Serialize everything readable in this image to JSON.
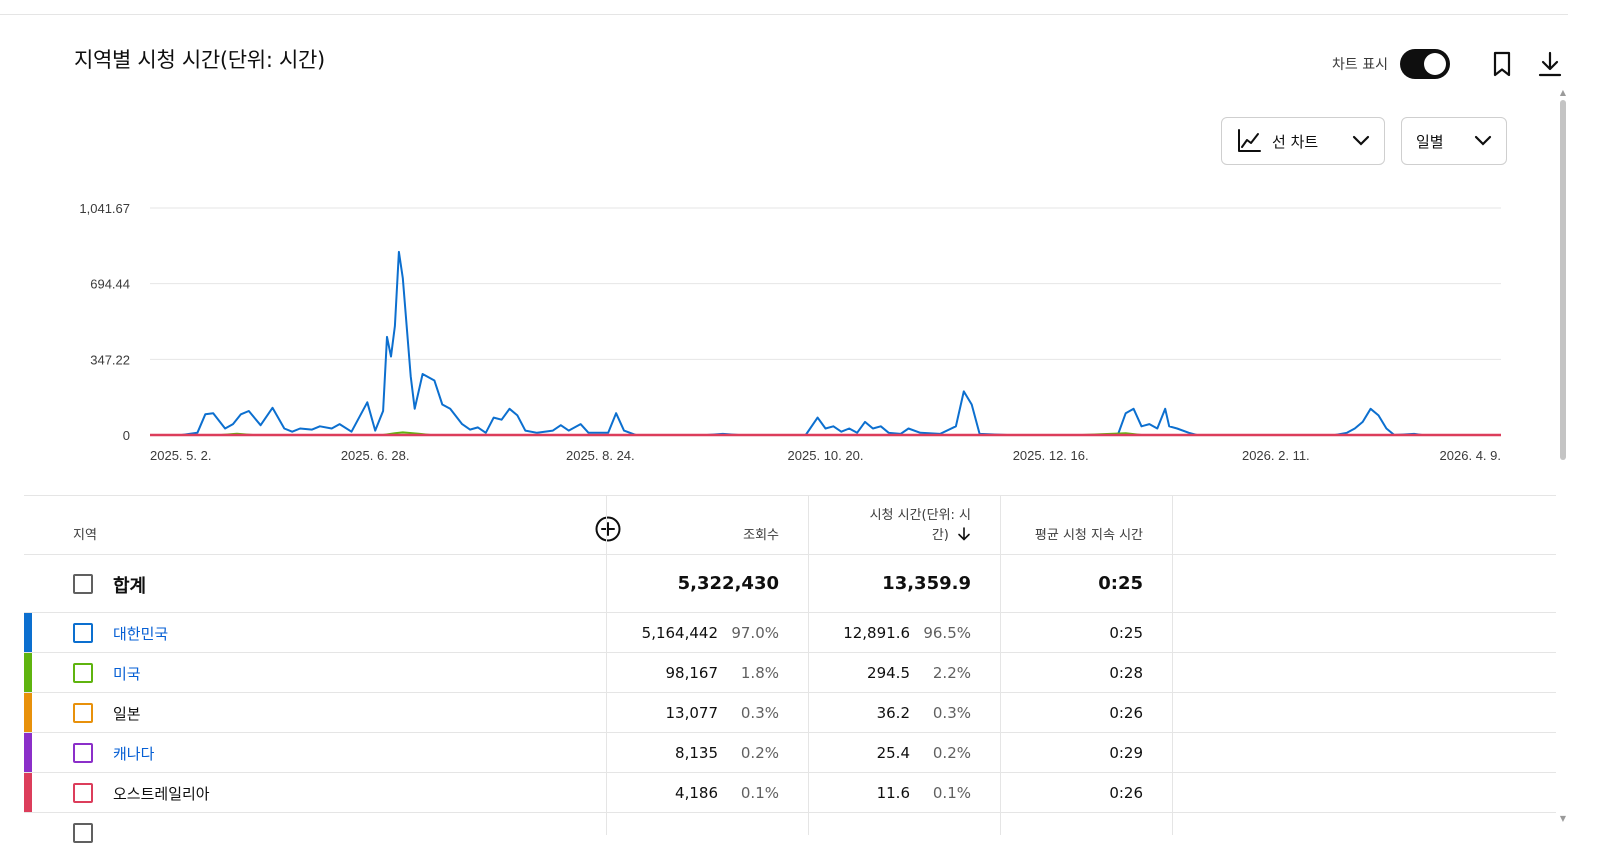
{
  "title": "지역별 시청 시간(단위: 시간)",
  "toolbar": {
    "toggle_label": "차트 표시",
    "chart_type_label": "선 차트",
    "period_label": "일별"
  },
  "colors": {
    "korea": "#0c6fcf",
    "usa": "#5fb40f",
    "japan": "#e8910b",
    "canada": "#8b2fc9",
    "australia": "#dc3d5b"
  },
  "chart_data": {
    "type": "line",
    "title": "지역별 시청 시간(단위: 시간)",
    "xlabel": "",
    "ylabel": "",
    "ylim": [
      0,
      1041.67
    ],
    "y_ticks": [
      "1,041.67",
      "694.44",
      "347.22",
      "0"
    ],
    "y_tick_values": [
      1041.67,
      694.44,
      347.22,
      0
    ],
    "x_tick_labels": [
      "2025. 5. 2.",
      "2025. 6. 28.",
      "2025. 8. 24.",
      "2025. 10. 20.",
      "2025. 12. 16.",
      "2026. 2. 11.",
      "2026. 4. 9."
    ],
    "x_start": "2025-05-02",
    "x_end": "2026-04-09",
    "grid": true,
    "series": [
      {
        "name": "대한민국",
        "color": "#0c6fcf",
        "points": [
          [
            "2025-05-02",
            0
          ],
          [
            "2025-05-10",
            0
          ],
          [
            "2025-05-14",
            10
          ],
          [
            "2025-05-16",
            95
          ],
          [
            "2025-05-18",
            100
          ],
          [
            "2025-05-21",
            30
          ],
          [
            "2025-05-23",
            50
          ],
          [
            "2025-05-25",
            95
          ],
          [
            "2025-05-27",
            110
          ],
          [
            "2025-05-30",
            45
          ],
          [
            "2025-06-02",
            125
          ],
          [
            "2025-06-05",
            30
          ],
          [
            "2025-06-07",
            15
          ],
          [
            "2025-06-09",
            30
          ],
          [
            "2025-06-12",
            25
          ],
          [
            "2025-06-14",
            40
          ],
          [
            "2025-06-17",
            30
          ],
          [
            "2025-06-19",
            50
          ],
          [
            "2025-06-22",
            15
          ],
          [
            "2025-06-26",
            150
          ],
          [
            "2025-06-28",
            20
          ],
          [
            "2025-06-30",
            110
          ],
          [
            "2025-07-01",
            450
          ],
          [
            "2025-07-02",
            360
          ],
          [
            "2025-07-03",
            500
          ],
          [
            "2025-07-04",
            840
          ],
          [
            "2025-07-05",
            720
          ],
          [
            "2025-07-07",
            270
          ],
          [
            "2025-07-08",
            120
          ],
          [
            "2025-07-10",
            280
          ],
          [
            "2025-07-13",
            250
          ],
          [
            "2025-07-15",
            140
          ],
          [
            "2025-07-17",
            120
          ],
          [
            "2025-07-20",
            50
          ],
          [
            "2025-07-22",
            25
          ],
          [
            "2025-07-24",
            35
          ],
          [
            "2025-07-26",
            10
          ],
          [
            "2025-07-28",
            80
          ],
          [
            "2025-07-30",
            70
          ],
          [
            "2025-08-01",
            120
          ],
          [
            "2025-08-03",
            90
          ],
          [
            "2025-08-05",
            20
          ],
          [
            "2025-08-08",
            10
          ],
          [
            "2025-08-12",
            20
          ],
          [
            "2025-08-14",
            45
          ],
          [
            "2025-08-16",
            20
          ],
          [
            "2025-08-19",
            50
          ],
          [
            "2025-08-21",
            10
          ],
          [
            "2025-08-26",
            10
          ],
          [
            "2025-08-28",
            100
          ],
          [
            "2025-08-30",
            20
          ],
          [
            "2025-09-02",
            0
          ],
          [
            "2025-09-20",
            0
          ],
          [
            "2025-09-24",
            5
          ],
          [
            "2025-09-28",
            0
          ],
          [
            "2025-10-15",
            0
          ],
          [
            "2025-10-18",
            80
          ],
          [
            "2025-10-20",
            30
          ],
          [
            "2025-10-22",
            40
          ],
          [
            "2025-10-24",
            15
          ],
          [
            "2025-10-26",
            30
          ],
          [
            "2025-10-28",
            10
          ],
          [
            "2025-10-30",
            60
          ],
          [
            "2025-11-01",
            30
          ],
          [
            "2025-11-03",
            40
          ],
          [
            "2025-11-05",
            10
          ],
          [
            "2025-11-08",
            5
          ],
          [
            "2025-11-10",
            30
          ],
          [
            "2025-11-13",
            10
          ],
          [
            "2025-11-18",
            5
          ],
          [
            "2025-11-22",
            40
          ],
          [
            "2025-11-24",
            200
          ],
          [
            "2025-11-26",
            140
          ],
          [
            "2025-11-28",
            5
          ],
          [
            "2025-12-05",
            0
          ],
          [
            "2025-12-28",
            0
          ],
          [
            "2026-01-02",
            0
          ],
          [
            "2026-01-04",
            100
          ],
          [
            "2026-01-06",
            120
          ],
          [
            "2026-01-08",
            40
          ],
          [
            "2026-01-10",
            50
          ],
          [
            "2026-01-12",
            30
          ],
          [
            "2026-01-14",
            120
          ],
          [
            "2026-01-15",
            40
          ],
          [
            "2026-01-17",
            30
          ],
          [
            "2026-01-20",
            10
          ],
          [
            "2026-01-22",
            0
          ],
          [
            "2026-02-20",
            0
          ],
          [
            "2026-02-26",
            0
          ],
          [
            "2026-03-01",
            10
          ],
          [
            "2026-03-03",
            30
          ],
          [
            "2026-03-05",
            60
          ],
          [
            "2026-03-07",
            120
          ],
          [
            "2026-03-09",
            90
          ],
          [
            "2026-03-11",
            30
          ],
          [
            "2026-03-13",
            0
          ],
          [
            "2026-03-18",
            5
          ],
          [
            "2026-03-20",
            0
          ],
          [
            "2026-04-09",
            0
          ]
        ]
      },
      {
        "name": "미국",
        "color": "#5fb40f",
        "points": [
          [
            "2025-05-02",
            0
          ],
          [
            "2025-05-20",
            0
          ],
          [
            "2025-05-24",
            6
          ],
          [
            "2025-05-28",
            0
          ],
          [
            "2025-06-30",
            0
          ],
          [
            "2025-07-03",
            8
          ],
          [
            "2025-07-05",
            12
          ],
          [
            "2025-07-09",
            6
          ],
          [
            "2025-07-12",
            0
          ],
          [
            "2025-12-24",
            0
          ],
          [
            "2026-01-04",
            8
          ],
          [
            "2026-01-08",
            0
          ],
          [
            "2026-04-09",
            0
          ]
        ]
      },
      {
        "name": "일본",
        "color": "#e8910b",
        "points": [
          [
            "2025-05-02",
            0
          ],
          [
            "2026-04-09",
            0
          ]
        ]
      },
      {
        "name": "캐나다",
        "color": "#8b2fc9",
        "points": [
          [
            "2025-05-02",
            0
          ],
          [
            "2026-04-09",
            0
          ]
        ]
      },
      {
        "name": "오스트레일리아",
        "color": "#dc3d5b",
        "points": [
          [
            "2025-05-02",
            0
          ],
          [
            "2026-04-09",
            0
          ]
        ]
      }
    ]
  },
  "table": {
    "headers": {
      "region": "지역",
      "views": "조회수",
      "watch_time": "시청 시간(단위: 시간)",
      "avg_duration": "평균 시청 지속 시간"
    },
    "total": {
      "label": "합계",
      "views": "5,322,430",
      "watch_time": "13,359.9",
      "avg_duration": "0:25"
    },
    "rows": [
      {
        "name": "대한민국",
        "link": true,
        "color": "#0c6fcf",
        "views": "5,164,442",
        "views_pct": "97.0%",
        "watch_time": "12,891.6",
        "watch_pct": "96.5%",
        "avg_duration": "0:25"
      },
      {
        "name": "미국",
        "link": true,
        "color": "#5fb40f",
        "views": "98,167",
        "views_pct": "1.8%",
        "watch_time": "294.5",
        "watch_pct": "2.2%",
        "avg_duration": "0:28"
      },
      {
        "name": "일본",
        "link": false,
        "color": "#e8910b",
        "views": "13,077",
        "views_pct": "0.3%",
        "watch_time": "36.2",
        "watch_pct": "0.3%",
        "avg_duration": "0:26"
      },
      {
        "name": "캐나다",
        "link": true,
        "color": "#8b2fc9",
        "views": "8,135",
        "views_pct": "0.2%",
        "watch_time": "25.4",
        "watch_pct": "0.2%",
        "avg_duration": "0:29"
      },
      {
        "name": "오스트레일리아",
        "link": false,
        "color": "#dc3d5b",
        "views": "4,186",
        "views_pct": "0.1%",
        "watch_time": "11.6",
        "watch_pct": "0.1%",
        "avg_duration": "0:26"
      }
    ]
  }
}
